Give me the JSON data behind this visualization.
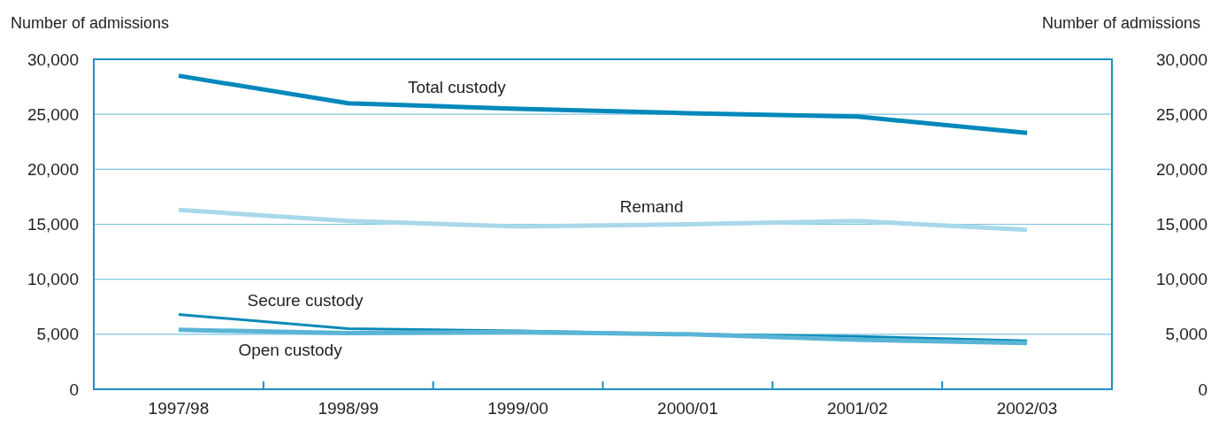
{
  "chart_data": {
    "type": "line",
    "ylabel": "Number of admissions",
    "y2label": "Number of admissions",
    "categories": [
      "1997/98",
      "1998/99",
      "1999/00",
      "2000/01",
      "2001/02",
      "2002/03"
    ],
    "series": [
      {
        "name": "Total custody",
        "color": "#0088bb",
        "values": [
          28500,
          26000,
          25500,
          25100,
          24800,
          23300
        ]
      },
      {
        "name": "Remand",
        "color": "#a8d8ea",
        "values": [
          16300,
          15300,
          14800,
          15000,
          15300,
          14500
        ]
      },
      {
        "name": "Secure custody",
        "color": "#0a8ab8",
        "values": [
          6800,
          5500,
          5300,
          5000,
          4800,
          4400
        ]
      },
      {
        "name": "Open custody",
        "color": "#5ab4d6",
        "values": [
          5400,
          5100,
          5200,
          5000,
          4500,
          4200
        ]
      }
    ],
    "ylim": [
      0,
      30000
    ],
    "yticks": [
      0,
      {
        "value": 5000,
        "label": "5,000"
      },
      {
        "value": 10000,
        "label": "10,000"
      },
      {
        "value": 15000,
        "label": "15,000"
      },
      {
        "value": 20000,
        "label": "20,000"
      },
      {
        "value": 25000,
        "label": "25,000"
      },
      {
        "value": 30000,
        "label": "30,000"
      }
    ],
    "y2lim": [
      0,
      30000
    ],
    "y2ticks": [
      0,
      {
        "value": 5000,
        "label": "5,000"
      },
      {
        "value": 10000,
        "label": "10,000"
      },
      {
        "value": 15000,
        "label": "15,000"
      },
      {
        "value": 20000,
        "label": "20,000"
      },
      {
        "value": 25000,
        "label": "25,000"
      },
      {
        "value": 30000,
        "label": "30,000"
      }
    ],
    "grid": "y",
    "legend": false,
    "marker": "none",
    "line_style": "solid"
  }
}
